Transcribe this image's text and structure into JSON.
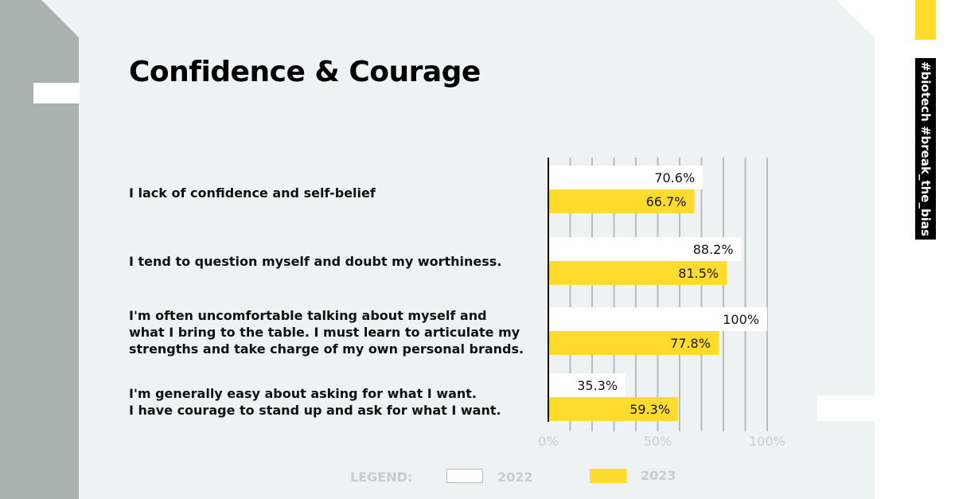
{
  "colors": {
    "panel": "#eff2f2",
    "side_gray": "#a8b3b0",
    "accent_yellow": "#ffdb2e",
    "bar_2022": "#ffffff",
    "bar_2023": "#ffdb2e",
    "grid": "#b5bebc",
    "axis": "#000000",
    "legend_text": "#c7cdcb"
  },
  "title": "Confidence & Courage",
  "hashtag": "#biotech #break_the_bias",
  "legend": {
    "title": "LEGEND:",
    "items": [
      {
        "label": "2022",
        "color": "#ffffff"
      },
      {
        "label": "2023",
        "color": "#ffdb2e"
      }
    ]
  },
  "chart_data": {
    "type": "bar",
    "orientation": "horizontal",
    "categories": [
      "I lack of confidence and self-belief",
      "I tend to question myself and doubt my worthiness.",
      "I'm often uncomfortable talking about myself and what I bring to the table. I must learn to articulate my strengths and take charge of my own personal brands.",
      "I'm generally easy about asking for what I want. I have courage to stand up and ask for what I want."
    ],
    "category_lines": [
      [
        "I lack of confidence and self-belief"
      ],
      [
        "I tend to question myself and doubt my worthiness."
      ],
      [
        "I'm often uncomfortable talking about myself and",
        "what I bring to the table. I must learn to articulate my",
        "strengths and take charge of my own personal brands."
      ],
      [
        "I'm generally easy about asking for what I want.",
        "I have courage to stand up and ask for what I want."
      ]
    ],
    "series": [
      {
        "name": "2022",
        "values": [
          70.6,
          88.2,
          100,
          35.3
        ],
        "labels": [
          "70.6%",
          "88.2%",
          "100%",
          "35.3%"
        ]
      },
      {
        "name": "2023",
        "values": [
          66.7,
          81.5,
          77.8,
          59.3
        ],
        "labels": [
          "66.7%",
          "81.5%",
          "77.8%",
          "59.3%"
        ]
      }
    ],
    "xlim": [
      0,
      100
    ],
    "xticks": [
      0,
      50,
      100
    ],
    "xtick_labels": [
      "0%",
      "50%",
      "100%"
    ],
    "grid": true
  }
}
